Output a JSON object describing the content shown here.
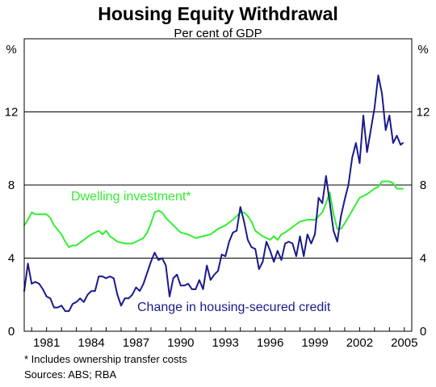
{
  "chart_data": {
    "type": "line",
    "title": "Housing Equity Withdrawal",
    "subtitle": "Per cent of GDP",
    "y_unit_left": "%",
    "y_unit_right": "%",
    "ylim": [
      0,
      16
    ],
    "xlim": [
      1979.5,
      2005.5
    ],
    "y_ticks": [
      "0",
      "4",
      "8",
      "12"
    ],
    "x_ticks": [
      "1981",
      "1984",
      "1987",
      "1990",
      "1993",
      "1996",
      "1999",
      "2002",
      "2005"
    ],
    "grid": "horizontal",
    "series": [
      {
        "name": "Change in housing-secured credit",
        "color": "#1a1a8c",
        "points": [
          [
            1979.5,
            2.2
          ],
          [
            1979.75,
            3.7
          ],
          [
            1980.0,
            2.6
          ],
          [
            1980.25,
            2.7
          ],
          [
            1980.5,
            2.6
          ],
          [
            1980.75,
            2.3
          ],
          [
            1981.0,
            1.9
          ],
          [
            1981.25,
            1.8
          ],
          [
            1981.5,
            1.3
          ],
          [
            1981.75,
            1.3
          ],
          [
            1982.0,
            1.4
          ],
          [
            1982.25,
            1.1
          ],
          [
            1982.5,
            1.1
          ],
          [
            1982.75,
            1.5
          ],
          [
            1983.0,
            1.6
          ],
          [
            1983.25,
            1.8
          ],
          [
            1983.5,
            1.6
          ],
          [
            1983.75,
            2.0
          ],
          [
            1984.0,
            2.2
          ],
          [
            1984.25,
            2.2
          ],
          [
            1984.5,
            3.0
          ],
          [
            1984.75,
            3.0
          ],
          [
            1985.0,
            2.9
          ],
          [
            1985.25,
            3.0
          ],
          [
            1985.5,
            2.9
          ],
          [
            1985.75,
            2.0
          ],
          [
            1986.0,
            1.4
          ],
          [
            1986.25,
            1.8
          ],
          [
            1986.5,
            1.8
          ],
          [
            1986.75,
            2.0
          ],
          [
            1987.0,
            2.4
          ],
          [
            1987.25,
            2.2
          ],
          [
            1987.5,
            2.6
          ],
          [
            1987.75,
            3.2
          ],
          [
            1988.0,
            3.8
          ],
          [
            1988.25,
            4.3
          ],
          [
            1988.5,
            3.9
          ],
          [
            1988.75,
            4.0
          ],
          [
            1989.0,
            3.6
          ],
          [
            1989.25,
            1.9
          ],
          [
            1989.5,
            2.9
          ],
          [
            1989.75,
            3.1
          ],
          [
            1990.0,
            2.5
          ],
          [
            1990.25,
            2.5
          ],
          [
            1990.5,
            2.6
          ],
          [
            1990.75,
            2.3
          ],
          [
            1991.0,
            2.3
          ],
          [
            1991.25,
            2.8
          ],
          [
            1991.5,
            2.3
          ],
          [
            1991.75,
            3.6
          ],
          [
            1992.0,
            2.8
          ],
          [
            1992.25,
            3.1
          ],
          [
            1992.5,
            3.3
          ],
          [
            1992.75,
            4.2
          ],
          [
            1993.0,
            4.1
          ],
          [
            1993.25,
            4.9
          ],
          [
            1993.5,
            5.4
          ],
          [
            1993.75,
            5.5
          ],
          [
            1994.0,
            6.8
          ],
          [
            1994.25,
            6.0
          ],
          [
            1994.5,
            5.0
          ],
          [
            1994.75,
            4.6
          ],
          [
            1995.0,
            4.5
          ],
          [
            1995.25,
            3.4
          ],
          [
            1995.5,
            3.8
          ],
          [
            1995.75,
            4.9
          ],
          [
            1996.0,
            4.4
          ],
          [
            1996.25,
            3.8
          ],
          [
            1996.5,
            4.4
          ],
          [
            1996.75,
            3.9
          ],
          [
            1997.0,
            4.8
          ],
          [
            1997.25,
            4.9
          ],
          [
            1997.5,
            4.8
          ],
          [
            1997.75,
            4.1
          ],
          [
            1998.0,
            5.2
          ],
          [
            1998.25,
            4.1
          ],
          [
            1998.5,
            5.3
          ],
          [
            1998.75,
            4.8
          ],
          [
            1999.0,
            5.3
          ],
          [
            1999.25,
            7.3
          ],
          [
            1999.5,
            7.0
          ],
          [
            1999.75,
            8.5
          ],
          [
            2000.0,
            7.0
          ],
          [
            2000.25,
            5.5
          ],
          [
            2000.5,
            4.9
          ],
          [
            2000.75,
            6.3
          ],
          [
            2001.0,
            7.2
          ],
          [
            2001.25,
            8.0
          ],
          [
            2001.5,
            9.5
          ],
          [
            2001.75,
            10.3
          ],
          [
            2002.0,
            9.2
          ],
          [
            2002.25,
            11.8
          ],
          [
            2002.5,
            9.8
          ],
          [
            2002.75,
            11.0
          ],
          [
            2003.0,
            12.2
          ],
          [
            2003.25,
            14.0
          ],
          [
            2003.5,
            13.0
          ],
          [
            2003.75,
            11.0
          ],
          [
            2004.0,
            11.8
          ],
          [
            2004.25,
            10.3
          ],
          [
            2004.5,
            10.7
          ],
          [
            2004.75,
            10.2
          ],
          [
            2004.9,
            10.3
          ]
        ]
      },
      {
        "name": "Dwelling investment*",
        "color": "#33ee33",
        "points": [
          [
            1979.5,
            5.8
          ],
          [
            1979.75,
            6.1
          ],
          [
            1980.0,
            6.5
          ],
          [
            1980.25,
            6.4
          ],
          [
            1980.5,
            6.4
          ],
          [
            1981.0,
            6.4
          ],
          [
            1981.25,
            6.2
          ],
          [
            1981.5,
            5.8
          ],
          [
            1982.0,
            5.3
          ],
          [
            1982.25,
            4.9
          ],
          [
            1982.5,
            4.6
          ],
          [
            1982.75,
            4.7
          ],
          [
            1983.0,
            4.7
          ],
          [
            1983.5,
            5.0
          ],
          [
            1984.0,
            5.3
          ],
          [
            1984.5,
            5.5
          ],
          [
            1984.75,
            5.3
          ],
          [
            1985.0,
            5.5
          ],
          [
            1985.25,
            5.2
          ],
          [
            1985.75,
            4.9
          ],
          [
            1986.25,
            4.8
          ],
          [
            1986.75,
            4.8
          ],
          [
            1987.0,
            4.9
          ],
          [
            1987.25,
            5.0
          ],
          [
            1987.5,
            5.1
          ],
          [
            1987.75,
            5.4
          ],
          [
            1988.0,
            5.9
          ],
          [
            1988.25,
            6.5
          ],
          [
            1988.5,
            6.6
          ],
          [
            1988.75,
            6.5
          ],
          [
            1989.0,
            6.2
          ],
          [
            1989.5,
            5.8
          ],
          [
            1990.0,
            5.4
          ],
          [
            1990.5,
            5.3
          ],
          [
            1991.0,
            5.1
          ],
          [
            1991.5,
            5.2
          ],
          [
            1992.0,
            5.3
          ],
          [
            1992.5,
            5.6
          ],
          [
            1993.0,
            5.8
          ],
          [
            1993.5,
            6.1
          ],
          [
            1994.0,
            6.5
          ],
          [
            1994.25,
            6.5
          ],
          [
            1994.5,
            6.3
          ],
          [
            1994.75,
            6.0
          ],
          [
            1995.0,
            5.5
          ],
          [
            1995.5,
            5.2
          ],
          [
            1996.0,
            5.0
          ],
          [
            1996.25,
            5.2
          ],
          [
            1996.5,
            5.0
          ],
          [
            1996.75,
            5.3
          ],
          [
            1997.0,
            5.4
          ],
          [
            1997.5,
            5.7
          ],
          [
            1998.0,
            6.0
          ],
          [
            1998.5,
            6.1
          ],
          [
            1999.0,
            6.1
          ],
          [
            1999.5,
            6.5
          ],
          [
            1999.75,
            7.0
          ],
          [
            2000.0,
            7.6
          ],
          [
            2000.25,
            6.4
          ],
          [
            2000.5,
            5.6
          ],
          [
            2000.75,
            5.6
          ],
          [
            2001.0,
            5.9
          ],
          [
            2001.5,
            6.6
          ],
          [
            2002.0,
            7.3
          ],
          [
            2002.5,
            7.5
          ],
          [
            2003.0,
            7.8
          ],
          [
            2003.25,
            7.9
          ],
          [
            2003.5,
            8.2
          ],
          [
            2003.75,
            8.2
          ],
          [
            2004.0,
            8.2
          ],
          [
            2004.25,
            8.1
          ],
          [
            2004.5,
            7.8
          ],
          [
            2004.75,
            7.8
          ],
          [
            2004.9,
            7.8
          ]
        ]
      }
    ],
    "annotations": {
      "dwelling_label": "Dwelling investment*",
      "credit_label": "Change in housing-secured credit"
    },
    "footnote": "* Includes ownership transfer costs",
    "sources": "Sources: ABS; RBA"
  }
}
